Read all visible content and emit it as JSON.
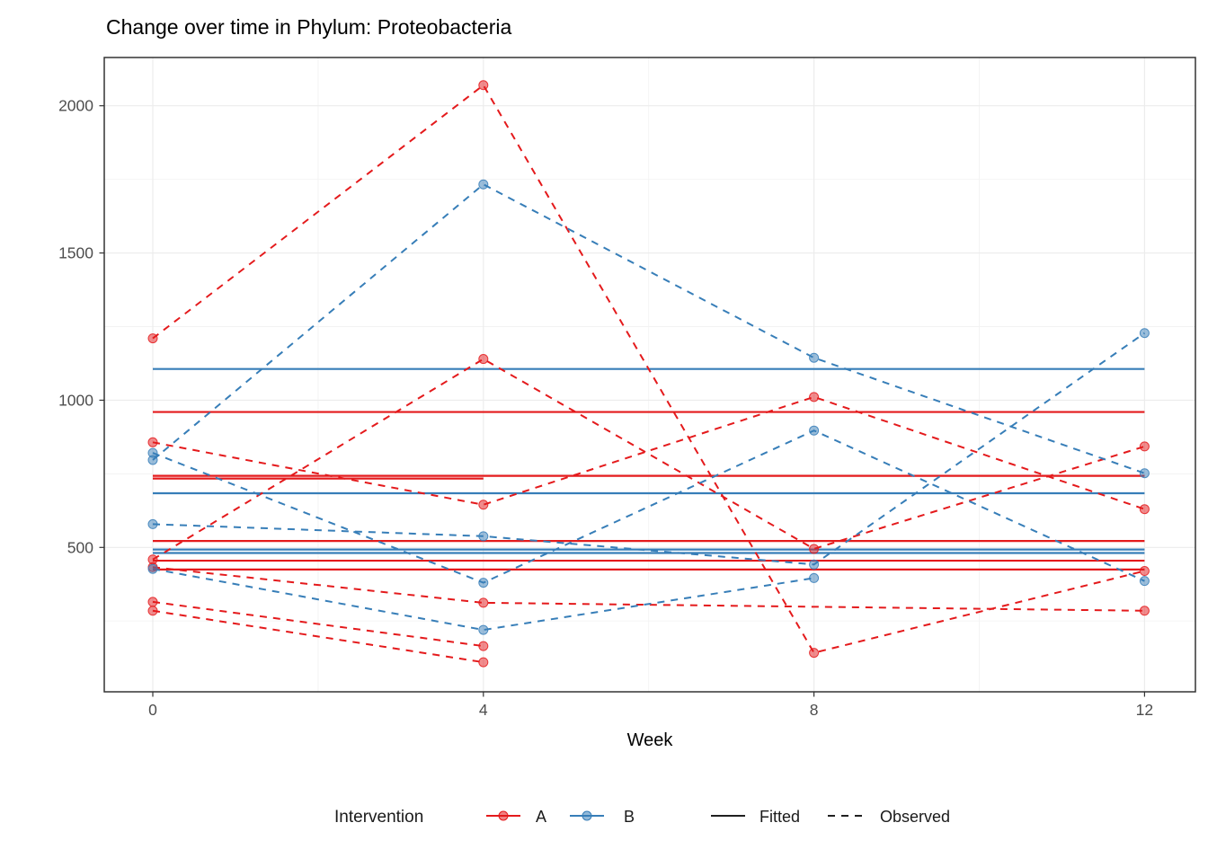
{
  "title": "Change over time in Phylum: Proteobacteria",
  "axes": {
    "x": {
      "label": "Week",
      "ticks": [
        0,
        4,
        8,
        12
      ],
      "minor_ticks": [
        2,
        6,
        10
      ],
      "range": [
        -0.59,
        12.61
      ]
    },
    "y": {
      "label": "",
      "ticks": [
        500,
        1000,
        1500,
        2000
      ],
      "minor_ticks": [
        250,
        750,
        1250,
        1750
      ],
      "range": [
        10,
        2164
      ]
    }
  },
  "colors": {
    "group_A": "#E41A1C",
    "group_B": "#377EB8",
    "grid_major": "#ECECEC",
    "grid_minor": "#F3F3F3",
    "panel_border": "#333333",
    "tick_text": "#4d4d4d",
    "linetype_key": "#000000"
  },
  "legend": {
    "title": "Intervention",
    "group_entries": [
      {
        "label": "A",
        "color": "#E41A1C"
      },
      {
        "label": "B",
        "color": "#377EB8"
      }
    ],
    "linetype_entries": [
      {
        "label": "Fitted",
        "style": "solid"
      },
      {
        "label": "Observed",
        "style": "dashed"
      }
    ]
  },
  "chart_data": {
    "type": "line",
    "title": "Change over time in Phylum: Proteobacteria",
    "xlabel": "Week",
    "ylabel": "",
    "x": [
      0,
      4,
      8,
      12
    ],
    "xlim": [
      -0.59,
      12.61
    ],
    "ylim": [
      10,
      2164
    ],
    "grid": "on",
    "legend_position": "bottom",
    "groups": [
      "A",
      "B"
    ],
    "observed_series": [
      {
        "group": "A",
        "subject": "A1",
        "weeks": [
          0,
          4,
          8,
          12
        ],
        "values": [
          1210,
          2070,
          142,
          420
        ]
      },
      {
        "group": "A",
        "subject": "A2",
        "weeks": [
          0,
          4,
          8,
          12
        ],
        "values": [
          857,
          645,
          1011,
          630
        ]
      },
      {
        "group": "A",
        "subject": "A3",
        "weeks": [
          0,
          4,
          8,
          12
        ],
        "values": [
          459,
          1140,
          495,
          843
        ]
      },
      {
        "group": "A",
        "subject": "A4",
        "weeks": [
          0,
          4,
          12
        ],
        "values": [
          433,
          312,
          285
        ]
      },
      {
        "group": "A",
        "subject": "A5",
        "weeks": [
          0,
          4
        ],
        "values": [
          315,
          165
        ]
      },
      {
        "group": "A",
        "subject": "A6",
        "weeks": [
          0,
          4
        ],
        "values": [
          285,
          110
        ]
      },
      {
        "group": "B",
        "subject": "B1",
        "weeks": [
          0,
          4,
          8,
          12
        ],
        "values": [
          797,
          1733,
          1144,
          752
        ]
      },
      {
        "group": "B",
        "subject": "B2",
        "weeks": [
          0,
          4,
          8,
          12
        ],
        "values": [
          821,
          380,
          897,
          386
        ]
      },
      {
        "group": "B",
        "subject": "B3",
        "weeks": [
          0,
          4,
          8,
          12
        ],
        "values": [
          579,
          538,
          442,
          1228
        ]
      },
      {
        "group": "B",
        "subject": "B4",
        "weeks": [
          0,
          4,
          8
        ],
        "values": [
          427,
          220,
          396
        ]
      }
    ],
    "fitted_lines": [
      {
        "group": "A",
        "value": 960,
        "weeks": [
          0,
          12
        ]
      },
      {
        "group": "A",
        "value": 743,
        "weeks": [
          0,
          12
        ]
      },
      {
        "group": "A",
        "value": 734,
        "weeks": [
          0,
          4
        ]
      },
      {
        "group": "A",
        "value": 522,
        "weeks": [
          0,
          12
        ]
      },
      {
        "group": "A",
        "value": 455,
        "weeks": [
          0,
          12
        ]
      },
      {
        "group": "A",
        "value": 425,
        "weeks": [
          0,
          12
        ]
      },
      {
        "group": "B",
        "value": 1106,
        "weeks": [
          0,
          12
        ]
      },
      {
        "group": "B",
        "value": 684,
        "weeks": [
          0,
          12
        ]
      },
      {
        "group": "B",
        "value": 493,
        "weeks": [
          0,
          12
        ]
      },
      {
        "group": "B",
        "value": 481,
        "weeks": [
          0,
          12
        ]
      }
    ]
  }
}
